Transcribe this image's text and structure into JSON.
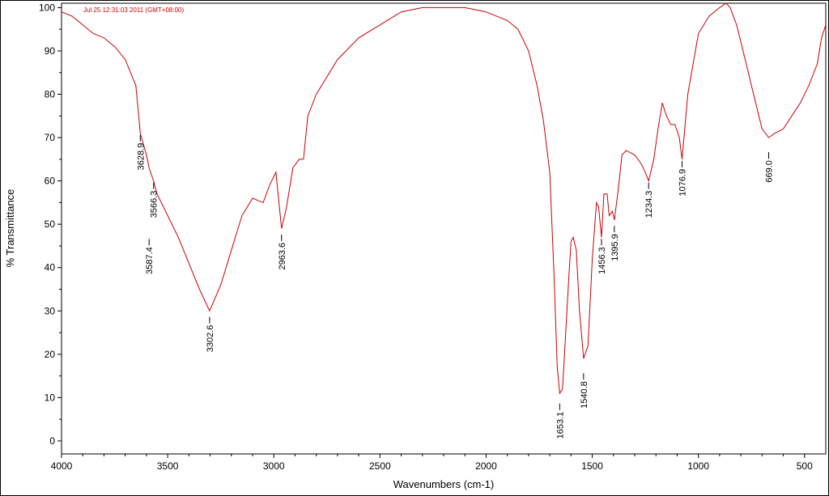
{
  "chart_data": {
    "type": "line",
    "timestamp": "Jul 25 12:31:03 2011 (GMT+08:00)",
    "xlabel": "Wavenumbers (cm-1)",
    "ylabel": "% Transmittance",
    "xlim": [
      4000,
      400
    ],
    "ylim": [
      -3,
      101
    ],
    "x_ticks": [
      4000,
      3500,
      3000,
      2500,
      2000,
      1500,
      1000,
      500
    ],
    "y_ticks": [
      0,
      10,
      20,
      30,
      40,
      50,
      60,
      70,
      80,
      90,
      100
    ],
    "series_color": "#cc0000",
    "series": [
      {
        "x": [
          4000,
          3950,
          3900,
          3850,
          3800,
          3750,
          3700,
          3650,
          3628.9,
          3600,
          3587.4,
          3566.3,
          3550,
          3500,
          3450,
          3400,
          3350,
          3302.6,
          3250,
          3200,
          3150,
          3100,
          3050,
          3020,
          2990,
          2963.6,
          2940,
          2910,
          2880,
          2860,
          2840,
          2800,
          2700,
          2600,
          2500,
          2400,
          2300,
          2200,
          2100,
          2000,
          1900,
          1850,
          1800,
          1760,
          1730,
          1700,
          1680,
          1665,
          1653.1,
          1640,
          1625,
          1610,
          1600,
          1590,
          1575,
          1560,
          1540.8,
          1520,
          1500,
          1480,
          1470,
          1456.3,
          1445,
          1430,
          1420,
          1405,
          1395.9,
          1380,
          1360,
          1340,
          1300,
          1270,
          1250,
          1234.3,
          1210,
          1190,
          1170,
          1150,
          1130,
          1110,
          1090,
          1076.9,
          1050,
          1000,
          950,
          900,
          870,
          850,
          820,
          780,
          740,
          700,
          669,
          640,
          600,
          560,
          520,
          480,
          440,
          420,
          400
        ],
        "y": [
          99,
          98,
          96,
          94,
          93,
          91,
          88,
          82,
          71,
          66,
          63,
          60,
          57,
          52,
          47,
          41,
          35,
          30,
          36,
          44,
          52,
          56,
          55,
          59,
          62,
          49,
          54,
          63,
          65,
          65,
          75,
          80,
          88,
          93,
          96,
          99,
          100,
          100,
          100,
          99,
          97,
          95,
          90,
          82,
          74,
          62,
          38,
          17,
          11,
          12,
          25,
          38,
          46,
          47,
          44,
          30,
          19,
          22,
          42,
          55,
          54,
          47,
          57,
          57,
          52,
          53,
          51,
          57,
          66,
          67,
          66,
          64,
          62,
          60,
          65,
          72,
          78,
          75,
          73,
          73,
          70,
          65,
          80,
          94,
          98,
          100,
          101,
          100,
          96,
          88,
          80,
          72,
          70,
          71,
          72,
          75,
          78,
          82,
          87,
          93,
          96
        ]
      }
    ],
    "peak_labels": [
      {
        "x": 3628.9,
        "label": "3628.9",
        "y": 71
      },
      {
        "x": 3587.4,
        "label": "3587.4",
        "y": 47
      },
      {
        "x": 3566.3,
        "label": "3566.3",
        "y": 60
      },
      {
        "x": 3302.6,
        "label": "3302.6",
        "y": 29
      },
      {
        "x": 2963.6,
        "label": "2963.6",
        "y": 48
      },
      {
        "x": 1653.1,
        "label": "1653.1",
        "y": 9
      },
      {
        "x": 1540.8,
        "label": "1540.8",
        "y": 16
      },
      {
        "x": 1456.3,
        "label": "1456.3",
        "y": 47
      },
      {
        "x": 1395.9,
        "label": "1395.9",
        "y": 50
      },
      {
        "x": 1234.3,
        "label": "1234.3",
        "y": 60
      },
      {
        "x": 1076.9,
        "label": "1076.9",
        "y": 65
      },
      {
        "x": 669.0,
        "label": "669.0",
        "y": 67
      }
    ]
  }
}
